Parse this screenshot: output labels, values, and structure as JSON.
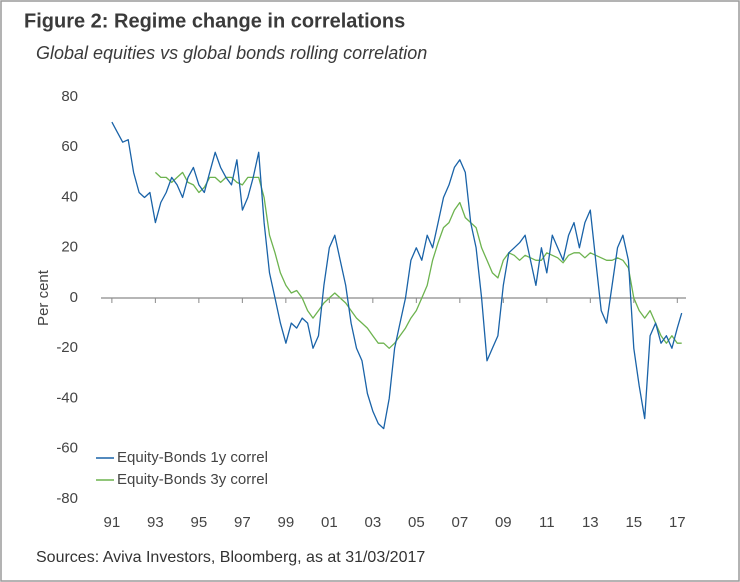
{
  "chart_data": {
    "type": "line",
    "title": "Figure 2: Regime change in correlations",
    "subtitle": "Global equities vs global bonds rolling correlation",
    "y_label": "Per cent",
    "source": "Sources: Aviva Investors, Bloomberg, as at 31/03/2017",
    "x": [
      1991,
      1991.25,
      1991.5,
      1991.75,
      1992,
      1992.25,
      1992.5,
      1992.75,
      1993,
      1993.25,
      1993.5,
      1993.75,
      1994,
      1994.25,
      1994.5,
      1994.75,
      1995,
      1995.25,
      1995.5,
      1995.75,
      1996,
      1996.25,
      1996.5,
      1996.75,
      1997,
      1997.25,
      1997.5,
      1997.75,
      1998,
      1998.25,
      1998.5,
      1998.75,
      1999,
      1999.25,
      1999.5,
      1999.75,
      2000,
      2000.25,
      2000.5,
      2000.75,
      2001,
      2001.25,
      2001.5,
      2001.75,
      2002,
      2002.25,
      2002.5,
      2002.75,
      2003,
      2003.25,
      2003.5,
      2003.75,
      2004,
      2004.25,
      2004.5,
      2004.75,
      2005,
      2005.25,
      2005.5,
      2005.75,
      2006,
      2006.25,
      2006.5,
      2006.75,
      2007,
      2007.25,
      2007.5,
      2007.75,
      2008,
      2008.25,
      2008.5,
      2008.75,
      2009,
      2009.25,
      2009.5,
      2009.75,
      2010,
      2010.25,
      2010.5,
      2010.75,
      2011,
      2011.25,
      2011.5,
      2011.75,
      2012,
      2012.25,
      2012.5,
      2012.75,
      2013,
      2013.25,
      2013.5,
      2013.75,
      2014,
      2014.25,
      2014.5,
      2014.75,
      2015,
      2015.25,
      2015.5,
      2015.75,
      2016,
      2016.25,
      2016.5,
      2016.75,
      2017,
      2017.2
    ],
    "series": [
      {
        "name": "Equity-Bonds 1y correl",
        "color": "#1a63a8",
        "values": [
          70,
          66,
          62,
          63,
          50,
          42,
          40,
          42,
          30,
          38,
          42,
          48,
          45,
          40,
          48,
          52,
          45,
          42,
          50,
          58,
          52,
          48,
          45,
          55,
          35,
          40,
          48,
          58,
          30,
          10,
          0,
          -10,
          -18,
          -10,
          -12,
          -8,
          -10,
          -20,
          -15,
          5,
          20,
          25,
          15,
          5,
          -10,
          -20,
          -25,
          -38,
          -45,
          -50,
          -52,
          -40,
          -20,
          -10,
          0,
          15,
          20,
          15,
          25,
          20,
          30,
          40,
          45,
          52,
          55,
          50,
          30,
          20,
          0,
          -25,
          -20,
          -15,
          5,
          18,
          20,
          22,
          25,
          15,
          5,
          20,
          10,
          25,
          20,
          15,
          25,
          30,
          20,
          30,
          35,
          15,
          -5,
          -10,
          5,
          20,
          25,
          15,
          -20,
          -35,
          -48,
          -15,
          -10,
          -18,
          -15,
          -20,
          -12,
          -6
        ]
      },
      {
        "name": "Equity-Bonds 3y correl",
        "color": "#6db34f",
        "values": [
          null,
          null,
          null,
          null,
          null,
          null,
          null,
          null,
          50,
          48,
          48,
          46,
          48,
          50,
          46,
          45,
          42,
          44,
          48,
          48,
          46,
          48,
          48,
          46,
          45,
          48,
          48,
          48,
          40,
          25,
          18,
          10,
          5,
          2,
          3,
          0,
          -5,
          -8,
          -5,
          -2,
          0,
          2,
          0,
          -2,
          -5,
          -8,
          -10,
          -12,
          -15,
          -18,
          -18,
          -20,
          -18,
          -15,
          -12,
          -8,
          -5,
          0,
          5,
          15,
          22,
          28,
          30,
          35,
          38,
          32,
          30,
          28,
          20,
          15,
          10,
          8,
          15,
          18,
          17,
          15,
          17,
          16,
          15,
          15,
          18,
          17,
          16,
          14,
          17,
          18,
          18,
          16,
          18,
          17,
          16,
          15,
          15,
          16,
          15,
          12,
          0,
          -5,
          -8,
          -5,
          -10,
          -15,
          -18,
          -15,
          -18,
          -18
        ]
      }
    ],
    "xlim": [
      1990.5,
      2017.4
    ],
    "xticks": [
      {
        "value": 1991,
        "label": "91"
      },
      {
        "value": 1993,
        "label": "93"
      },
      {
        "value": 1995,
        "label": "95"
      },
      {
        "value": 1997,
        "label": "97"
      },
      {
        "value": 1999,
        "label": "99"
      },
      {
        "value": 2001,
        "label": "01"
      },
      {
        "value": 2003,
        "label": "03"
      },
      {
        "value": 2005,
        "label": "05"
      },
      {
        "value": 2007,
        "label": "07"
      },
      {
        "value": 2009,
        "label": "09"
      },
      {
        "value": 2011,
        "label": "11"
      },
      {
        "value": 2013,
        "label": "13"
      },
      {
        "value": 2015,
        "label": "15"
      },
      {
        "value": 2017,
        "label": "17"
      }
    ],
    "ylim": [
      -80,
      80
    ],
    "yticks": [
      -80,
      -60,
      -40,
      -20,
      0,
      20,
      40,
      60,
      80
    ],
    "grid": false,
    "legend": "lower left"
  }
}
